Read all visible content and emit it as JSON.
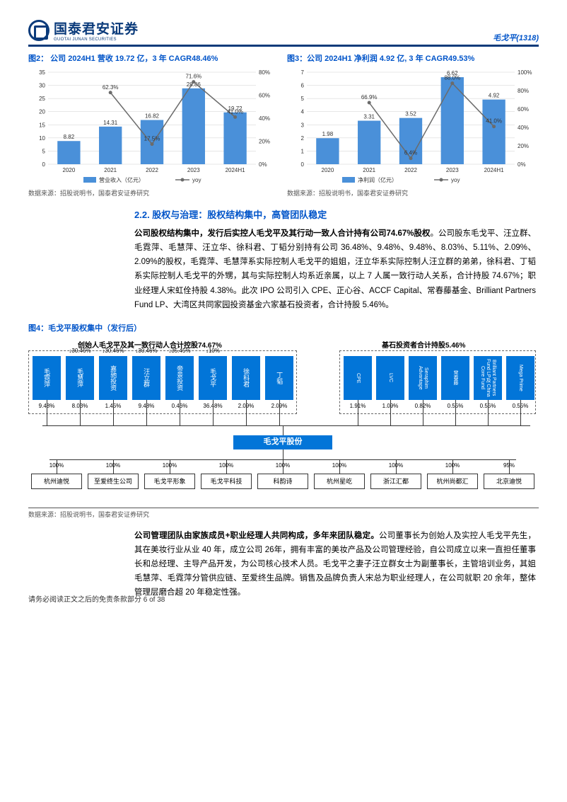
{
  "header": {
    "brand_cn": "国泰君安证券",
    "brand_en": "GUOTAI JUNAN SECURITIES",
    "stock": "毛戈平(1318)"
  },
  "fig2": {
    "title": "图2：  公司 2024H1 营收 19.72 亿，3 年 CAGR48.46%",
    "categories": [
      "2020",
      "2021",
      "2022",
      "2023",
      "2024H1"
    ],
    "bar_values": [
      8.82,
      14.31,
      16.82,
      28.86,
      19.72
    ],
    "line_values": [
      null,
      62.3,
      17.5,
      71.6,
      41.0
    ],
    "bar_color": "#4a90d9",
    "line_color": "#6b6b6b",
    "y_left_max": 35,
    "y_left_step": 5,
    "y_right_max": 80,
    "y_right_min": 0,
    "y_right_step": 20,
    "legend_bar": "营业收入（亿元）",
    "legend_line": "yoy",
    "source": "数据来源：招股说明书，国泰君安证券研究",
    "grid_color": "#cfcfcf",
    "background": "#ffffff",
    "label_fontsize": 8
  },
  "fig3": {
    "title": "图3：公司 2024H1 净利润 4.92 亿, 3 年 CAGR49.53%",
    "categories": [
      "2020",
      "2021",
      "2022",
      "2023",
      "2024H1"
    ],
    "bar_values": [
      1.98,
      3.31,
      3.52,
      6.62,
      4.92
    ],
    "line_values": [
      null,
      66.9,
      6.4,
      88.0,
      41.0
    ],
    "bar_color": "#4a90d9",
    "line_color": "#6b6b6b",
    "y_left_max": 7,
    "y_left_step": 1,
    "y_right_max": 100,
    "y_right_min": 0,
    "y_right_step": 20,
    "legend_bar": "净利润（亿元）",
    "legend_line": "yoy",
    "source": "数据来源：招股说明书，国泰君安证券研究",
    "grid_color": "#cfcfcf",
    "background": "#ffffff",
    "label_fontsize": 8
  },
  "section": {
    "heading": "2.2.  股权与治理：股权结构集中，高管团队稳定"
  },
  "para1": "公司股权结构集中，发行后实控人毛戈平及其行动一致人合计持有公司74.67%股权。公司股东毛戈平、汪立群、毛霓萍、毛慧萍、汪立华、徐科君、丁韬分别持有公司 36.48%、9.48%、9.48%、8.03%、5.11%、2.09%、2.09%的股权，毛霓萍、毛慧萍系实际控制人毛戈平的姐姐，汪立华系实际控制人汪立群的弟弟，徐科君、丁韬系实际控制人毛戈平的外甥，其与实际控制人均系近亲属，以上 7 人属一致行动人关系，合计持股 74.67%；职业经理人宋虹佺持股 4.38%。此次 IPO 公司引入 CPE、正心谷、ACCF Capital、常春藤基金、Brilliant Partners Fund LP、大湾区共同家园投资基金六家基石投资者，合计持股 5.46%。",
  "fig4": {
    "title": "图4：毛戈平股权集中（发行后）",
    "group1_label": "创始人毛戈平及其一致行动人合计控股74.67%",
    "group2_label": "基石投资者合计持股5.46%",
    "top_nodes": [
      {
        "name": "毛霓萍",
        "pct": "9.48%",
        "top_arrow": ""
      },
      {
        "name": "毛慧萍",
        "pct": "8.03%",
        "top_arrow": "30.46%"
      },
      {
        "name": "嘉驰投资",
        "pct": "1.45%",
        "top_arrow": "30.46%"
      },
      {
        "name": "汪立群",
        "pct": "9.48%",
        "top_arrow": "30.46%"
      },
      {
        "name": "帝景投资",
        "pct": "0.46%",
        "top_arrow": "35.45%"
      },
      {
        "name": "毛戈平",
        "pct": "36.48%",
        "top_arrow": "10%"
      },
      {
        "name": "徐科君",
        "pct": "2.09%",
        "top_arrow": ""
      },
      {
        "name": "丁韬",
        "pct": "2.09%",
        "top_arrow": ""
      }
    ],
    "inv_nodes": [
      {
        "name": "CPE",
        "pct": "1.91%"
      },
      {
        "name": "LVC",
        "pct": "1.09%"
      },
      {
        "name": "Seraphim Advantage",
        "pct": "0.82%"
      },
      {
        "name": "常春藤",
        "pct": "0.55%"
      },
      {
        "name": "Brilliant Partners Fund LP及 China Core Fund",
        "pct": "0.55%"
      },
      {
        "name": "Mega Prime",
        "pct": "0.55%"
      }
    ],
    "center": "毛戈平股份",
    "subs": [
      {
        "name": "杭州迪悦",
        "pct": "100%"
      },
      {
        "name": "至爱终生公司",
        "pct": "100%"
      },
      {
        "name": "毛戈平形象",
        "pct": "100%"
      },
      {
        "name": "毛戈平科技",
        "pct": "100%"
      },
      {
        "name": "科韵诗",
        "pct": "100%"
      },
      {
        "name": "杭州星屹",
        "pct": "100%"
      },
      {
        "name": "浙江汇都",
        "pct": "100%"
      },
      {
        "name": "杭州尚都汇",
        "pct": "100%"
      },
      {
        "name": "北京迪悦",
        "pct": "95%"
      }
    ],
    "source": "数据来源：招股说明书，国泰君安证券研究",
    "node_color": "#0275d8",
    "dashed_color": "#666666"
  },
  "para2": "公司管理团队由家族成员+职业经理人共同构成，多年来团队稳定。公司董事长为创始人及实控人毛戈平先生，其在美妆行业从业 40 年，成立公司 26年，拥有丰富的美妆产品及公司管理经验，自公司成立以来一直担任董事长和总经理、主导产品开发，为公司核心技术人员。毛戈平之妻子汪立群女士为副董事长，主管培训业务，其姐毛慧萍、毛霓萍分管供应链、至爱终生品牌。销售及品牌负责人宋总为职业经理人，在公司就职 20 余年，整体管理层磨合超 20 年稳定性强。",
  "footer": "请务必阅读正文之后的免责条款部分  6 of 38"
}
